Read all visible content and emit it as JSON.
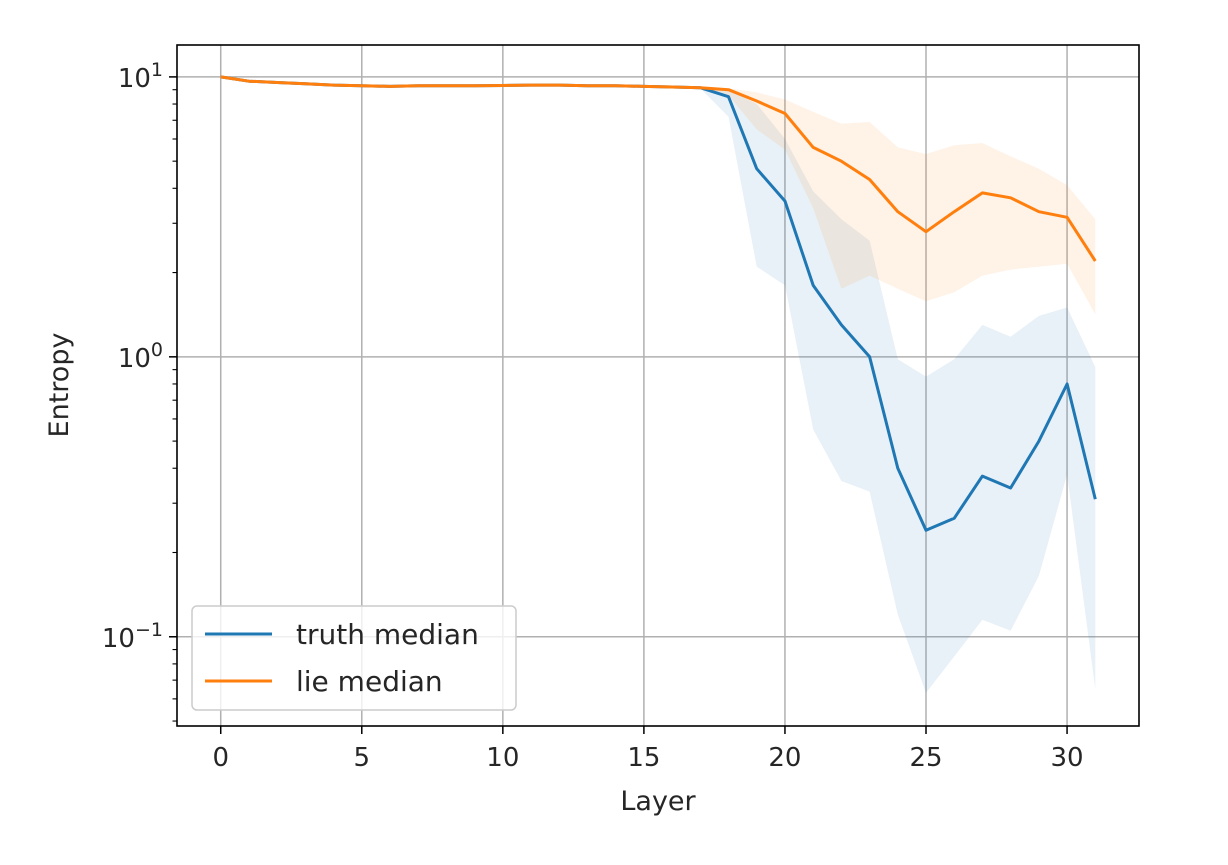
{
  "chart_data": {
    "type": "line",
    "xlabel": "Layer",
    "ylabel": "Entropy",
    "y_scale": "log",
    "xlim": [
      -1.55,
      32.55
    ],
    "ylim": [
      0.048,
      13.0
    ],
    "x_ticks": [
      0,
      5,
      10,
      15,
      20,
      25,
      30
    ],
    "y_ticks": [
      {
        "value": 10,
        "base": "10",
        "exp": "1"
      },
      {
        "value": 1,
        "base": "10",
        "exp": "0"
      },
      {
        "value": 0.1,
        "base": "10",
        "exp": "−1"
      }
    ],
    "grid": true,
    "legend_position": "lower left",
    "x": [
      0,
      1,
      2,
      3,
      4,
      5,
      6,
      7,
      8,
      9,
      10,
      11,
      12,
      13,
      14,
      15,
      16,
      17,
      18,
      19,
      20,
      21,
      22,
      23,
      24,
      25,
      26,
      27,
      28,
      29,
      30,
      31
    ],
    "series": [
      {
        "name": "truth median",
        "color": "#1f77b4",
        "values": [
          10.0,
          9.65,
          9.55,
          9.45,
          9.35,
          9.3,
          9.25,
          9.3,
          9.3,
          9.3,
          9.32,
          9.35,
          9.35,
          9.3,
          9.3,
          9.25,
          9.2,
          9.15,
          8.5,
          4.7,
          3.6,
          1.8,
          1.3,
          1.0,
          0.4,
          0.24,
          0.265,
          0.375,
          0.34,
          0.5,
          0.8,
          0.31
        ],
        "band_low": [
          10.0,
          9.65,
          9.55,
          9.45,
          9.35,
          9.3,
          9.25,
          9.3,
          9.3,
          9.3,
          9.32,
          9.35,
          9.35,
          9.3,
          9.3,
          9.25,
          9.2,
          9.1,
          7.2,
          2.1,
          1.8,
          0.55,
          0.36,
          0.33,
          0.12,
          0.063,
          0.085,
          0.115,
          0.105,
          0.165,
          0.38,
          0.065
        ],
        "band_high": [
          10.0,
          9.65,
          9.55,
          9.45,
          9.35,
          9.3,
          9.25,
          9.3,
          9.3,
          9.3,
          9.32,
          9.35,
          9.35,
          9.3,
          9.3,
          9.25,
          9.2,
          9.2,
          9.0,
          8.0,
          6.0,
          3.9,
          3.1,
          2.6,
          0.98,
          0.85,
          0.98,
          1.3,
          1.18,
          1.4,
          1.5,
          0.92
        ]
      },
      {
        "name": "lie median",
        "color": "#ff7f0e",
        "values": [
          10.0,
          9.65,
          9.55,
          9.45,
          9.35,
          9.3,
          9.25,
          9.3,
          9.3,
          9.3,
          9.32,
          9.35,
          9.35,
          9.3,
          9.3,
          9.25,
          9.2,
          9.15,
          9.0,
          8.2,
          7.4,
          5.6,
          5.0,
          4.3,
          3.3,
          2.8,
          3.3,
          3.85,
          3.7,
          3.3,
          3.15,
          2.2
        ],
        "band_low": [
          10.0,
          9.65,
          9.55,
          9.45,
          9.35,
          9.3,
          9.25,
          9.3,
          9.3,
          9.3,
          9.32,
          9.35,
          9.35,
          9.3,
          9.3,
          9.25,
          9.2,
          9.1,
          8.6,
          6.5,
          5.5,
          3.4,
          1.75,
          1.95,
          1.75,
          1.58,
          1.7,
          1.95,
          2.05,
          2.1,
          2.15,
          1.42
        ],
        "band_high": [
          10.0,
          9.65,
          9.55,
          9.45,
          9.35,
          9.3,
          9.25,
          9.3,
          9.3,
          9.3,
          9.32,
          9.35,
          9.35,
          9.3,
          9.3,
          9.25,
          9.2,
          9.2,
          9.1,
          8.8,
          8.3,
          7.5,
          6.8,
          6.9,
          5.6,
          5.3,
          5.7,
          5.8,
          5.2,
          4.7,
          4.1,
          3.1
        ]
      }
    ]
  }
}
